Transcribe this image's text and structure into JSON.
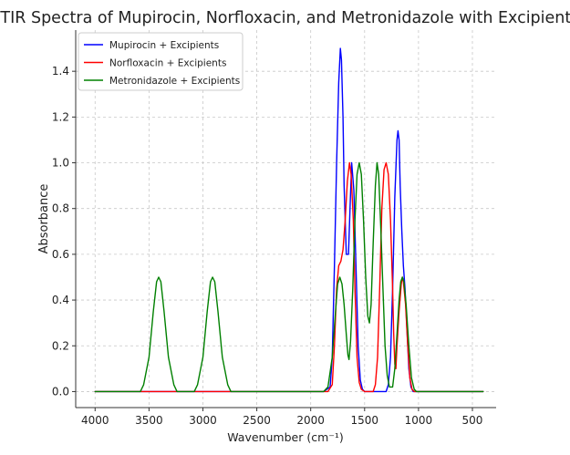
{
  "chart_data": {
    "type": "line",
    "title": "FTIR Spectra of Mupirocin, Norfloxacin, and Metronidazole with Excipients",
    "xlabel": "Wavenumber (cm⁻¹)",
    "ylabel": "Absorbance",
    "x_reversed": true,
    "xlim": [
      4180,
      280
    ],
    "ylim": [
      -0.07,
      1.58
    ],
    "x_ticks": [
      4000,
      3500,
      3000,
      2500,
      2000,
      1500,
      1000,
      500
    ],
    "y_ticks": [
      0.0,
      0.2,
      0.4,
      0.6,
      0.8,
      1.0,
      1.2,
      1.4
    ],
    "x_tick_labels": [
      "4000",
      "3500",
      "3000",
      "2500",
      "2000",
      "1500",
      "1000",
      "500"
    ],
    "y_tick_labels": [
      "0.0",
      "0.2",
      "0.4",
      "0.6",
      "0.8",
      "1.0",
      "1.2",
      "1.4"
    ],
    "x_range": [
      4000,
      400
    ],
    "grid": true,
    "legend_position": "top-left",
    "series": [
      {
        "name": "Mupirocin + Excipients",
        "color": "#0000ff",
        "points": [
          [
            4000,
            0
          ],
          [
            1880,
            0
          ],
          [
            1820,
            0.02
          ],
          [
            1800,
            0.15
          ],
          [
            1780,
            0.55
          ],
          [
            1760,
            1.0
          ],
          [
            1740,
            1.35
          ],
          [
            1725,
            1.5
          ],
          [
            1715,
            1.45
          ],
          [
            1700,
            1.2
          ],
          [
            1690,
            0.9
          ],
          [
            1670,
            0.6
          ],
          [
            1650,
            0.6
          ],
          [
            1635,
            0.8
          ],
          [
            1620,
            1.0
          ],
          [
            1600,
            0.88
          ],
          [
            1580,
            0.55
          ],
          [
            1560,
            0.2
          ],
          [
            1540,
            0.05
          ],
          [
            1520,
            0.01
          ],
          [
            1500,
            0
          ],
          [
            1300,
            0
          ],
          [
            1280,
            0.03
          ],
          [
            1260,
            0.15
          ],
          [
            1240,
            0.45
          ],
          [
            1220,
            0.85
          ],
          [
            1200,
            1.1
          ],
          [
            1190,
            1.14
          ],
          [
            1180,
            1.1
          ],
          [
            1170,
            0.9
          ],
          [
            1155,
            0.7
          ],
          [
            1140,
            0.55
          ],
          [
            1125,
            0.45
          ],
          [
            1110,
            0.3
          ],
          [
            1090,
            0.1
          ],
          [
            1070,
            0.02
          ],
          [
            1050,
            0
          ],
          [
            400,
            0
          ]
        ]
      },
      {
        "name": "Norfloxacin + Excipients",
        "color": "#ff0000",
        "points": [
          [
            4000,
            0
          ],
          [
            1840,
            0
          ],
          [
            1800,
            0.03
          ],
          [
            1780,
            0.2
          ],
          [
            1760,
            0.45
          ],
          [
            1740,
            0.55
          ],
          [
            1720,
            0.57
          ],
          [
            1700,
            0.62
          ],
          [
            1680,
            0.75
          ],
          [
            1660,
            0.92
          ],
          [
            1640,
            1.0
          ],
          [
            1625,
            0.95
          ],
          [
            1605,
            0.75
          ],
          [
            1590,
            0.45
          ],
          [
            1570,
            0.15
          ],
          [
            1550,
            0.04
          ],
          [
            1530,
            0.01
          ],
          [
            1500,
            0
          ],
          [
            1420,
            0
          ],
          [
            1400,
            0.03
          ],
          [
            1380,
            0.15
          ],
          [
            1360,
            0.45
          ],
          [
            1340,
            0.8
          ],
          [
            1320,
            0.97
          ],
          [
            1300,
            1.0
          ],
          [
            1280,
            0.95
          ],
          [
            1260,
            0.75
          ],
          [
            1240,
            0.45
          ],
          [
            1230,
            0.25
          ],
          [
            1220,
            0.12
          ],
          [
            1210,
            0.1
          ],
          [
            1200,
            0.2
          ],
          [
            1180,
            0.35
          ],
          [
            1160,
            0.47
          ],
          [
            1150,
            0.5
          ],
          [
            1140,
            0.48
          ],
          [
            1120,
            0.38
          ],
          [
            1100,
            0.2
          ],
          [
            1080,
            0.06
          ],
          [
            1060,
            0.01
          ],
          [
            1040,
            0
          ],
          [
            400,
            0
          ]
        ]
      },
      {
        "name": "Metronidazole + Excipients",
        "color": "#008000",
        "points": [
          [
            4000,
            0
          ],
          [
            3580,
            0
          ],
          [
            3550,
            0.03
          ],
          [
            3500,
            0.15
          ],
          [
            3460,
            0.35
          ],
          [
            3430,
            0.48
          ],
          [
            3410,
            0.5
          ],
          [
            3390,
            0.48
          ],
          [
            3360,
            0.35
          ],
          [
            3320,
            0.15
          ],
          [
            3270,
            0.03
          ],
          [
            3240,
            0
          ],
          [
            3080,
            0
          ],
          [
            3050,
            0.03
          ],
          [
            3000,
            0.15
          ],
          [
            2960,
            0.35
          ],
          [
            2930,
            0.48
          ],
          [
            2910,
            0.5
          ],
          [
            2890,
            0.48
          ],
          [
            2860,
            0.35
          ],
          [
            2820,
            0.15
          ],
          [
            2770,
            0.03
          ],
          [
            2740,
            0
          ],
          [
            1880,
            0
          ],
          [
            1840,
            0.02
          ],
          [
            1800,
            0.15
          ],
          [
            1770,
            0.35
          ],
          [
            1750,
            0.47
          ],
          [
            1730,
            0.5
          ],
          [
            1710,
            0.47
          ],
          [
            1690,
            0.38
          ],
          [
            1670,
            0.25
          ],
          [
            1655,
            0.16
          ],
          [
            1645,
            0.14
          ],
          [
            1630,
            0.22
          ],
          [
            1610,
            0.45
          ],
          [
            1590,
            0.75
          ],
          [
            1570,
            0.95
          ],
          [
            1550,
            1.0
          ],
          [
            1530,
            0.95
          ],
          [
            1510,
            0.75
          ],
          [
            1490,
            0.5
          ],
          [
            1470,
            0.33
          ],
          [
            1455,
            0.3
          ],
          [
            1440,
            0.38
          ],
          [
            1420,
            0.65
          ],
          [
            1400,
            0.9
          ],
          [
            1385,
            1.0
          ],
          [
            1370,
            0.95
          ],
          [
            1350,
            0.72
          ],
          [
            1330,
            0.45
          ],
          [
            1310,
            0.2
          ],
          [
            1290,
            0.07
          ],
          [
            1270,
            0.02
          ],
          [
            1240,
            0.02
          ],
          [
            1220,
            0.1
          ],
          [
            1200,
            0.25
          ],
          [
            1180,
            0.4
          ],
          [
            1165,
            0.48
          ],
          [
            1150,
            0.5
          ],
          [
            1135,
            0.48
          ],
          [
            1115,
            0.38
          ],
          [
            1090,
            0.2
          ],
          [
            1065,
            0.06
          ],
          [
            1040,
            0.01
          ],
          [
            1020,
            0
          ],
          [
            400,
            0
          ]
        ]
      }
    ]
  }
}
